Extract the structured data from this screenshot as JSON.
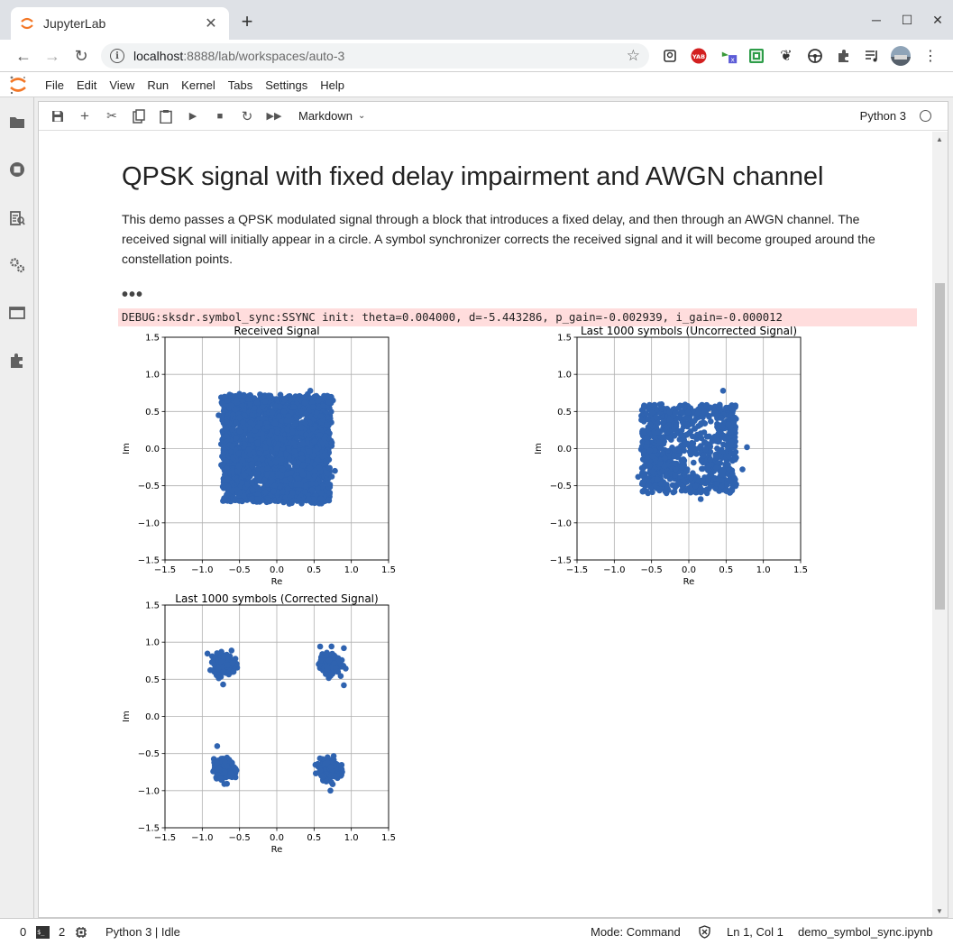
{
  "browser": {
    "tab_title": "JupyterLab",
    "url_host": "localhost",
    "url_rest": ":8888/lab/workspaces/auto-3"
  },
  "menu": [
    "File",
    "Edit",
    "View",
    "Run",
    "Kernel",
    "Tabs",
    "Settings",
    "Help"
  ],
  "notebook_toolbar": {
    "cell_type": "Markdown",
    "kernel": "Python 3"
  },
  "markdown": {
    "title": "QPSK signal with fixed delay impairment and AWGN channel",
    "paragraph": "This demo passes a QPSK modulated signal through a block that introduces a fixed delay, and then through an AWGN channel. The received signal will initially appear in a circle. A symbol synchronizer corrects the received signal and it will become grouped around the constellation points.",
    "collapsed": "•••"
  },
  "debug_output": "DEBUG:sksdr.symbol_sync:SSYNC init: theta=0.004000, d=-5.443286, p_gain=-0.002939, i_gain=-0.000012",
  "chart_data": [
    {
      "type": "scatter",
      "title": "Received Signal",
      "xlabel": "Re",
      "ylabel": "Im",
      "xlim": [
        -1.5,
        1.5
      ],
      "ylim": [
        -1.5,
        1.5
      ],
      "xticks": [
        "−1.5",
        "−1.0",
        "−0.5",
        "0.0",
        "0.5",
        "1.0",
        "1.5"
      ],
      "yticks": [
        "1.5",
        "1.0",
        "0.5",
        "0.0",
        "−0.5",
        "−1.0",
        "−1.5"
      ],
      "grid": true,
      "color": "#2f63b0",
      "distribution": "filled square spanning approximately [-0.75, 0.75] on both axes",
      "points": [
        [
          -0.7,
          0.7
        ],
        [
          0.7,
          0.7
        ],
        [
          -0.7,
          -0.7
        ],
        [
          0.7,
          -0.7
        ],
        [
          0,
          0
        ],
        [
          -0.35,
          0.35
        ],
        [
          0.35,
          -0.35
        ],
        [
          0.78,
          -0.3
        ],
        [
          -0.78,
          0.45
        ],
        [
          0.45,
          0.78
        ]
      ]
    },
    {
      "type": "scatter",
      "title": "Last 1000 symbols (Uncorrected Signal)",
      "xlabel": "Re",
      "ylabel": "Im",
      "xlim": [
        -1.5,
        1.5
      ],
      "ylim": [
        -1.5,
        1.5
      ],
      "xticks": [
        "−1.5",
        "−1.0",
        "−0.5",
        "0.0",
        "0.5",
        "1.0",
        "1.5"
      ],
      "yticks": [
        "1.5",
        "1.0",
        "0.5",
        "0.0",
        "−0.5",
        "−1.0",
        "−1.5"
      ],
      "grid": true,
      "color": "#2f63b0",
      "distribution": "patchy square spanning approximately [-0.65, 0.65] with outliers",
      "points": [
        [
          0.46,
          0.78
        ],
        [
          0.78,
          0.02
        ],
        [
          0.16,
          -0.68
        ],
        [
          -0.68,
          -0.38
        ],
        [
          0.72,
          -0.28
        ],
        [
          -0.6,
          0.58
        ],
        [
          0.5,
          0.55
        ],
        [
          -0.3,
          -0.6
        ]
      ]
    },
    {
      "type": "scatter",
      "title": "Last 1000 symbols (Corrected Signal)",
      "xlabel": "Re",
      "ylabel": "Im",
      "xlim": [
        -1.5,
        1.5
      ],
      "ylim": [
        -1.5,
        1.5
      ],
      "xticks": [
        "−1.5",
        "−1.0",
        "−0.5",
        "0.0",
        "0.5",
        "1.0",
        "1.5"
      ],
      "yticks": [
        "1.5",
        "1.0",
        "0.5",
        "0.0",
        "−0.5",
        "−1.0",
        "−1.5"
      ],
      "grid": true,
      "color": "#2f63b0",
      "distribution": "four clusters centered near (±0.71, ±0.71)",
      "clusters": [
        [
          -0.71,
          0.71
        ],
        [
          0.71,
          0.71
        ],
        [
          -0.71,
          -0.71
        ],
        [
          0.71,
          -0.71
        ]
      ],
      "points": [
        [
          -0.58,
          0.6
        ],
        [
          -0.72,
          0.43
        ],
        [
          0.9,
          0.92
        ],
        [
          0.9,
          0.42
        ],
        [
          -0.8,
          -0.4
        ],
        [
          0.72,
          -1.0
        ],
        [
          0.55,
          -0.64
        ],
        [
          -0.55,
          -0.72
        ]
      ]
    }
  ],
  "statusbar": {
    "count_a": "0",
    "count_b": "2",
    "kernel_status": "Python 3 | Idle",
    "mode": "Mode: Command",
    "position": "Ln 1, Col 1",
    "filename": "demo_symbol_sync.ipynb"
  }
}
